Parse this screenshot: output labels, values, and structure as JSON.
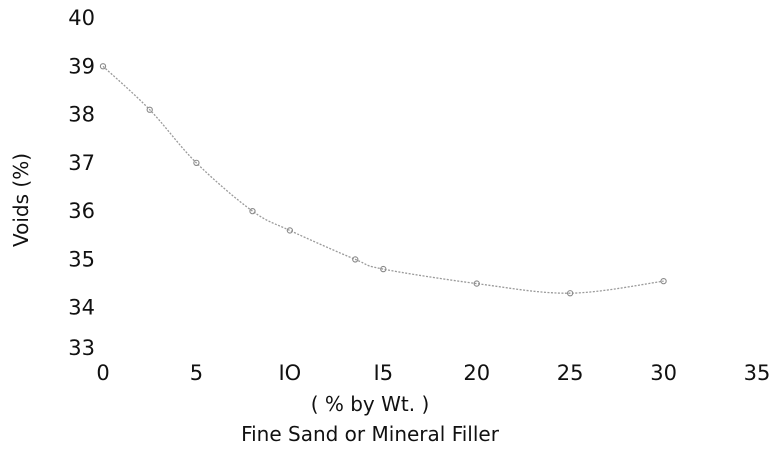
{
  "chart_data": {
    "type": "scatter",
    "title": "",
    "xlabel_line1": "( % by Wt. )",
    "xlabel_line2": "Fine Sand or Mineral Filler",
    "ylabel": "Voids (%)",
    "xlim": [
      0,
      35
    ],
    "ylim": [
      33,
      40
    ],
    "xticks": [
      "0",
      "5",
      "IO",
      "I5",
      "20",
      "25",
      "30",
      "35"
    ],
    "yticks": [
      "33",
      "34",
      "35",
      "36",
      "37",
      "38",
      "39",
      "40"
    ],
    "grid": false,
    "series": [
      {
        "x": [
          0,
          2.5,
          5,
          8,
          10,
          13.5,
          15,
          20,
          25,
          30
        ],
        "y": [
          39.0,
          38.1,
          37.0,
          36.0,
          35.6,
          35.0,
          34.8,
          34.5,
          34.3,
          34.55
        ]
      }
    ],
    "colors": {
      "line": "#9a9a9a",
      "text": "#111111"
    }
  }
}
